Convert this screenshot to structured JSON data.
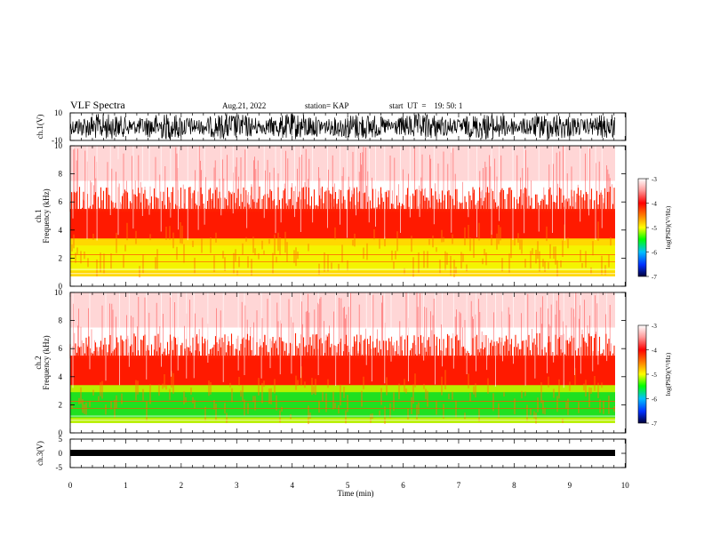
{
  "header": {
    "title": "VLF Spectra",
    "date": "Aug.21, 2022",
    "station": "station= KAP",
    "start": "start  UT  =    19: 50: 1"
  },
  "chart_data": [
    {
      "type": "line",
      "name": "ch1-waveform",
      "ylabel": "ch.1(V)",
      "ylim": [
        -10,
        10
      ],
      "yticks": [
        "10",
        "-10"
      ],
      "xlim": [
        0,
        10
      ]
    },
    {
      "type": "heatmap",
      "name": "ch1-spectrogram",
      "ylabel": "ch.1\nFrequency  (kHz)",
      "ylim": [
        0,
        10
      ],
      "yticks": [
        "0",
        "2",
        "4",
        "6",
        "8",
        "10"
      ],
      "xlim": [
        0,
        10
      ],
      "colorbar": {
        "label": "log(PSD)(V²/Hz)",
        "range": [
          -7,
          -3
        ],
        "ticks": [
          "-3",
          "-4",
          "-5",
          "-6",
          "-7"
        ]
      }
    },
    {
      "type": "heatmap",
      "name": "ch2-spectrogram",
      "ylabel": "ch.2\nFrequency  (kHz)",
      "ylim": [
        0,
        10
      ],
      "yticks": [
        "0",
        "2",
        "4",
        "6",
        "8",
        "10"
      ],
      "xlim": [
        0,
        10
      ],
      "colorbar": {
        "label": "log(PSD)(V²/Hz)",
        "range": [
          -7,
          -3
        ],
        "ticks": [
          "-3",
          "-4",
          "-5",
          "-6",
          "-7"
        ]
      }
    },
    {
      "type": "line",
      "name": "ch3-waveform",
      "ylabel": "ch.3(V)",
      "ylim": [
        -5,
        5
      ],
      "yticks": [
        "5",
        "0",
        "-5"
      ],
      "xlim": [
        0,
        10
      ],
      "xlabel": "Time  (min)",
      "xticks": [
        "0",
        "1",
        "2",
        "3",
        "4",
        "5",
        "6",
        "7",
        "8",
        "9",
        "10"
      ]
    }
  ]
}
